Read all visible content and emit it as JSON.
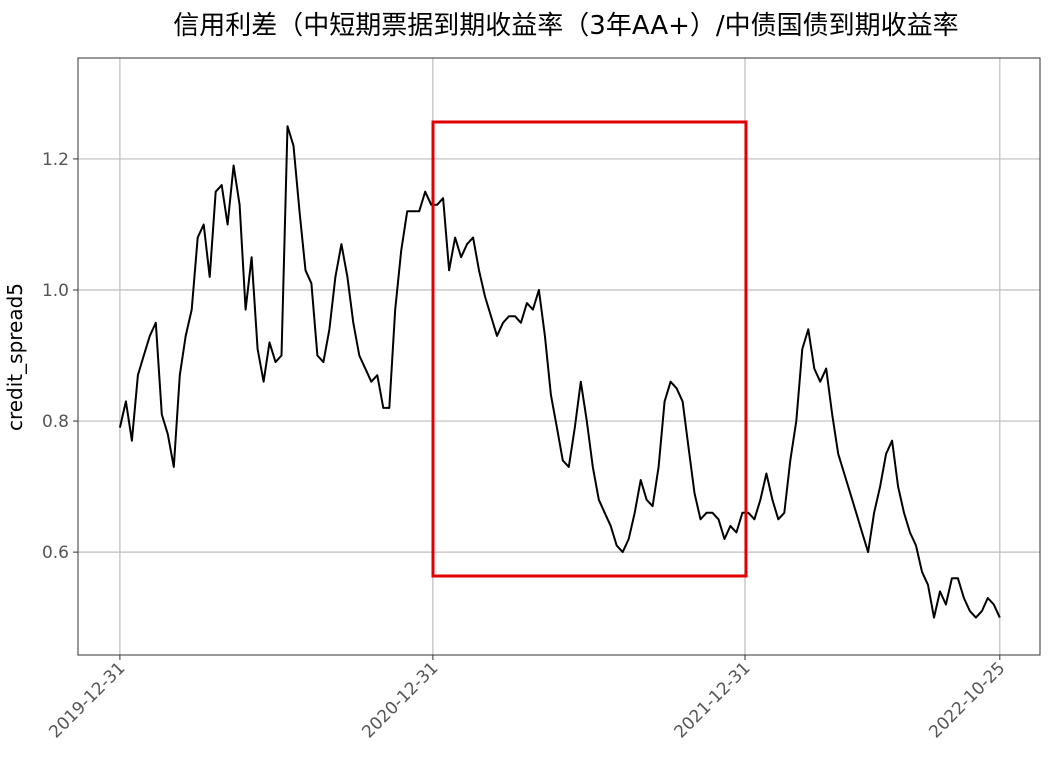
{
  "chart_data": {
    "type": "line",
    "title": "信用利差（中短期票据到期收益率（3年AA+）/中债国债到期收益率",
    "y_label": "credit_spread5",
    "grid": true,
    "xlim": [
      "2019-11-12",
      "2022-12-11"
    ],
    "xticks": [
      "2019-12-31",
      "2020-12-31",
      "2021-12-31",
      "2022-10-25"
    ],
    "ylim": [
      0.443,
      1.354
    ],
    "yticks": [
      0.6,
      0.8,
      {
        "value": 1,
        "label": "1.0"
      },
      1.2
    ],
    "x": [
      "2019-12-31",
      "2020-01-07",
      "2020-01-14",
      "2020-01-21",
      "2020-01-28",
      "2020-02-04",
      "2020-02-11",
      "2020-02-18",
      "2020-02-25",
      "2020-03-03",
      "2020-03-10",
      "2020-03-17",
      "2020-03-24",
      "2020-03-31",
      "2020-04-07",
      "2020-04-14",
      "2020-04-21",
      "2020-04-28",
      "2020-05-05",
      "2020-05-12",
      "2020-05-19",
      "2020-05-26",
      "2020-06-02",
      "2020-06-09",
      "2020-06-16",
      "2020-06-23",
      "2020-06-30",
      "2020-07-07",
      "2020-07-14",
      "2020-07-21",
      "2020-07-28",
      "2020-08-04",
      "2020-08-11",
      "2020-08-18",
      "2020-08-25",
      "2020-09-01",
      "2020-09-08",
      "2020-09-15",
      "2020-09-22",
      "2020-09-29",
      "2020-10-06",
      "2020-10-13",
      "2020-10-20",
      "2020-10-27",
      "2020-11-03",
      "2020-11-10",
      "2020-11-17",
      "2020-11-24",
      "2020-12-01",
      "2020-12-08",
      "2020-12-15",
      "2020-12-22",
      "2020-12-29",
      "2021-01-05",
      "2021-01-12",
      "2021-01-19",
      "2021-01-26",
      "2021-02-02",
      "2021-02-09",
      "2021-02-16",
      "2021-02-23",
      "2021-03-02",
      "2021-03-09",
      "2021-03-16",
      "2021-03-23",
      "2021-03-30",
      "2021-04-06",
      "2021-04-13",
      "2021-04-20",
      "2021-04-27",
      "2021-05-04",
      "2021-05-11",
      "2021-05-18",
      "2021-05-25",
      "2021-06-01",
      "2021-06-08",
      "2021-06-15",
      "2021-06-22",
      "2021-06-29",
      "2021-07-06",
      "2021-07-13",
      "2021-07-20",
      "2021-07-27",
      "2021-08-03",
      "2021-08-10",
      "2021-08-17",
      "2021-08-24",
      "2021-08-31",
      "2021-09-07",
      "2021-09-14",
      "2021-09-21",
      "2021-09-28",
      "2021-10-05",
      "2021-10-12",
      "2021-10-19",
      "2021-10-26",
      "2021-11-02",
      "2021-11-09",
      "2021-11-16",
      "2021-11-23",
      "2021-11-30",
      "2021-12-07",
      "2021-12-14",
      "2021-12-21",
      "2021-12-28",
      "2022-01-04",
      "2022-01-11",
      "2022-01-18",
      "2022-01-25",
      "2022-02-01",
      "2022-02-08",
      "2022-02-15",
      "2022-02-22",
      "2022-03-01",
      "2022-03-08",
      "2022-03-15",
      "2022-03-22",
      "2022-03-29",
      "2022-04-05",
      "2022-04-12",
      "2022-04-19",
      "2022-04-26",
      "2022-05-03",
      "2022-05-10",
      "2022-05-17",
      "2022-05-24",
      "2022-05-31",
      "2022-06-07",
      "2022-06-14",
      "2022-06-21",
      "2022-06-28",
      "2022-07-05",
      "2022-07-12",
      "2022-07-19",
      "2022-07-26",
      "2022-08-02",
      "2022-08-09",
      "2022-08-16",
      "2022-08-23",
      "2022-08-30",
      "2022-09-06",
      "2022-09-13",
      "2022-09-20",
      "2022-09-27",
      "2022-10-04",
      "2022-10-11",
      "2022-10-18",
      "2022-10-25"
    ],
    "series": [
      {
        "name": "credit_spread5",
        "color": "#000000",
        "values": [
          0.79,
          0.83,
          0.77,
          0.87,
          0.9,
          0.93,
          0.95,
          0.81,
          0.78,
          0.73,
          0.87,
          0.93,
          0.97,
          1.08,
          1.1,
          1.02,
          1.15,
          1.16,
          1.1,
          1.19,
          1.13,
          0.97,
          1.05,
          0.91,
          0.86,
          0.92,
          0.89,
          0.9,
          1.25,
          1.22,
          1.12,
          1.03,
          1.01,
          0.9,
          0.89,
          0.94,
          1.02,
          1.07,
          1.02,
          0.95,
          0.9,
          0.88,
          0.86,
          0.87,
          0.82,
          0.82,
          0.97,
          1.06,
          1.12,
          1.12,
          1.12,
          1.15,
          1.13,
          1.13,
          1.14,
          1.03,
          1.08,
          1.05,
          1.07,
          1.08,
          1.03,
          0.99,
          0.96,
          0.93,
          0.95,
          0.96,
          0.96,
          0.95,
          0.98,
          0.97,
          1.0,
          0.93,
          0.84,
          0.79,
          0.74,
          0.73,
          0.79,
          0.86,
          0.8,
          0.73,
          0.68,
          0.66,
          0.64,
          0.61,
          0.6,
          0.62,
          0.66,
          0.71,
          0.68,
          0.67,
          0.73,
          0.83,
          0.86,
          0.85,
          0.83,
          0.76,
          0.69,
          0.65,
          0.66,
          0.66,
          0.65,
          0.62,
          0.64,
          0.63,
          0.66,
          0.66,
          0.65,
          0.68,
          0.72,
          0.68,
          0.65,
          0.66,
          0.74,
          0.8,
          0.91,
          0.94,
          0.88,
          0.86,
          0.88,
          0.81,
          0.75,
          0.72,
          0.69,
          0.66,
          0.63,
          0.6,
          0.66,
          0.7,
          0.75,
          0.77,
          0.7,
          0.66,
          0.63,
          0.61,
          0.57,
          0.55,
          0.5,
          0.54,
          0.52,
          0.56,
          0.56,
          0.53,
          0.51,
          0.5,
          0.51,
          0.53,
          0.52,
          0.5
        ]
      }
    ]
  }
}
